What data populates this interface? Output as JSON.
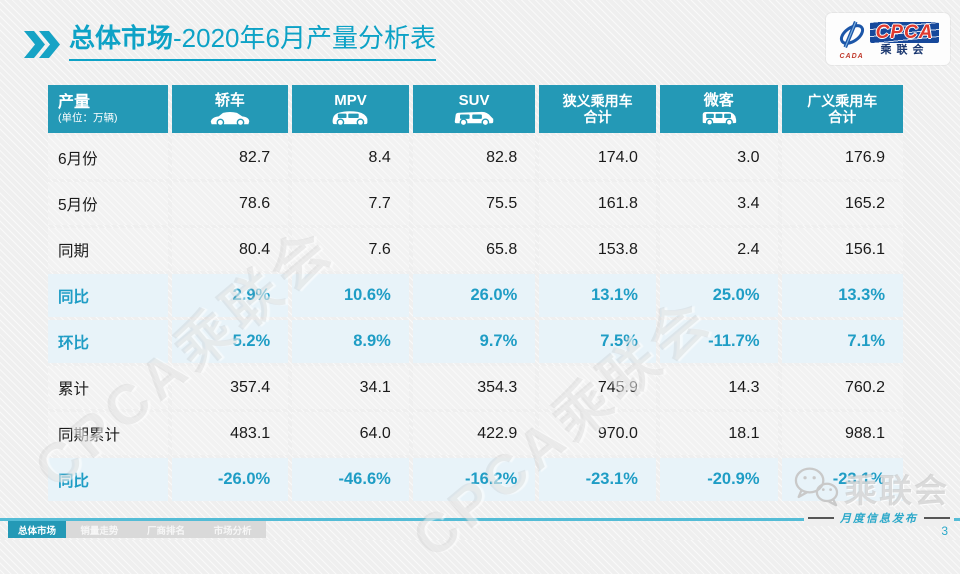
{
  "slide": {
    "title": {
      "prefix": "总体市场",
      "suffix": "-2020年6月产量分析表"
    },
    "page_number": "3",
    "footer_note": "月度信息发布",
    "watermark_diagonal": "CPCA乘联会",
    "watermark_wechat": "乘联会"
  },
  "logo": {
    "cpca": "CPCA",
    "cada": "CADA",
    "sub": "乘联会"
  },
  "colors": {
    "accent_teal": "#2499B6",
    "title_teal": "#0DA2C6",
    "highlight_text": "#1F9DC5",
    "highlight_bg": "#E8F3F9",
    "row_bg": "#F2F2F2",
    "logo_navy": "#16489B",
    "logo_red": "#E03A2F"
  },
  "table": {
    "unit_header": {
      "title": "产量",
      "unit": "(单位：万辆)"
    },
    "columns": [
      {
        "label": "轿车",
        "icon": "sedan-icon"
      },
      {
        "label": "MPV",
        "icon": "mpv-icon"
      },
      {
        "label": "SUV",
        "icon": "suv-icon"
      },
      {
        "label": "狭义乘用车",
        "label2": "合计"
      },
      {
        "label": "微客",
        "icon": "microvan-icon"
      },
      {
        "label": "广义乘用车",
        "label2": "合计"
      }
    ],
    "rows": [
      {
        "label": "6月份",
        "highlight": false,
        "values": [
          "82.7",
          "8.4",
          "82.8",
          "174.0",
          "3.0",
          "176.9"
        ]
      },
      {
        "label": "5月份",
        "highlight": false,
        "values": [
          "78.6",
          "7.7",
          "75.5",
          "161.8",
          "3.4",
          "165.2"
        ]
      },
      {
        "label": "同期",
        "highlight": false,
        "values": [
          "80.4",
          "7.6",
          "65.8",
          "153.8",
          "2.4",
          "156.1"
        ]
      },
      {
        "label": "同比",
        "highlight": true,
        "values": [
          "2.9%",
          "10.6%",
          "26.0%",
          "13.1%",
          "25.0%",
          "13.3%"
        ]
      },
      {
        "label": "环比",
        "highlight": true,
        "values": [
          "5.2%",
          "8.9%",
          "9.7%",
          "7.5%",
          "-11.7%",
          "7.1%"
        ]
      },
      {
        "label": "累计",
        "highlight": false,
        "values": [
          "357.4",
          "34.1",
          "354.3",
          "745.9",
          "14.3",
          "760.2"
        ]
      },
      {
        "label": "同期累计",
        "highlight": false,
        "values": [
          "483.1",
          "64.0",
          "422.9",
          "970.0",
          "18.1",
          "988.1"
        ]
      },
      {
        "label": "同比",
        "highlight": true,
        "values": [
          "-26.0%",
          "-46.6%",
          "-16.2%",
          "-23.1%",
          "-20.9%",
          "-23.1%"
        ]
      }
    ]
  },
  "footer": {
    "tabs": [
      {
        "label": "总体市场",
        "active": true
      },
      {
        "label": "销量走势",
        "active": false
      },
      {
        "label": "厂商排名",
        "active": false
      },
      {
        "label": "市场分析",
        "active": false
      }
    ]
  }
}
